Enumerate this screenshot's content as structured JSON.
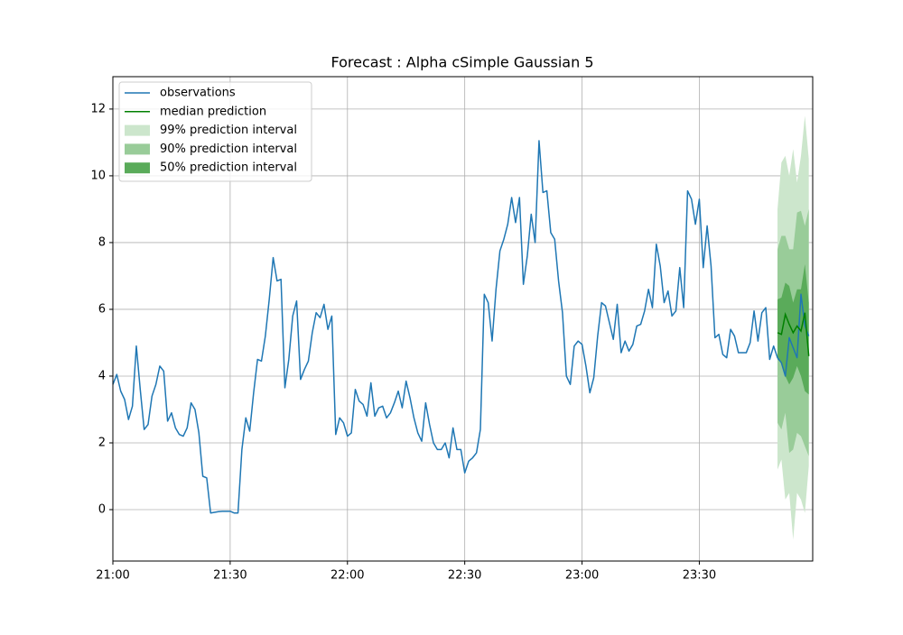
{
  "chart_data": {
    "type": "forecast",
    "title": "Forecast : Alpha cSimple Gaussian 5",
    "xlim": [
      "21:00",
      "23:59"
    ],
    "xticks": [
      "21:00",
      "21:30",
      "22:00",
      "22:30",
      "23:00",
      "23:30"
    ],
    "ylim": [
      -1.54,
      12.97
    ],
    "yticks": [
      0,
      2,
      4,
      6,
      8,
      10,
      12
    ],
    "grid": true,
    "legend": "upper left",
    "x": [
      "21:00",
      "21:01",
      "21:02",
      "21:03",
      "21:04",
      "21:05",
      "21:06",
      "21:07",
      "21:08",
      "21:09",
      "21:10",
      "21:11",
      "21:12",
      "21:13",
      "21:14",
      "21:15",
      "21:16",
      "21:17",
      "21:18",
      "21:19",
      "21:20",
      "21:21",
      "21:22",
      "21:23",
      "21:24",
      "21:25",
      "21:26",
      "21:27",
      "21:28",
      "21:29",
      "21:30",
      "21:31",
      "21:32",
      "21:33",
      "21:34",
      "21:35",
      "21:36",
      "21:37",
      "21:38",
      "21:39",
      "21:40",
      "21:41",
      "21:42",
      "21:43",
      "21:44",
      "21:45",
      "21:46",
      "21:47",
      "21:48",
      "21:49",
      "21:50",
      "21:51",
      "21:52",
      "21:53",
      "21:54",
      "21:55",
      "21:56",
      "21:57",
      "21:58",
      "21:59",
      "22:00",
      "22:01",
      "22:02",
      "22:03",
      "22:04",
      "22:05",
      "22:06",
      "22:07",
      "22:08",
      "22:09",
      "22:10",
      "22:11",
      "22:12",
      "22:13",
      "22:14",
      "22:15",
      "22:16",
      "22:17",
      "22:18",
      "22:19",
      "22:20",
      "22:21",
      "22:22",
      "22:23",
      "22:24",
      "22:25",
      "22:26",
      "22:27",
      "22:28",
      "22:29",
      "22:30",
      "22:31",
      "22:32",
      "22:33",
      "22:34",
      "22:35",
      "22:36",
      "22:37",
      "22:38",
      "22:39",
      "22:40",
      "22:41",
      "22:42",
      "22:43",
      "22:44",
      "22:45",
      "22:46",
      "22:47",
      "22:48",
      "22:49",
      "22:50",
      "22:51",
      "22:52",
      "22:53",
      "22:54",
      "22:55",
      "22:56",
      "22:57",
      "22:58",
      "22:59",
      "23:00",
      "23:01",
      "23:02",
      "23:03",
      "23:04",
      "23:05",
      "23:06",
      "23:07",
      "23:08",
      "23:09",
      "23:10",
      "23:11",
      "23:12",
      "23:13",
      "23:14",
      "23:15",
      "23:16",
      "23:17",
      "23:18",
      "23:19",
      "23:20",
      "23:21",
      "23:22",
      "23:23",
      "23:24",
      "23:25",
      "23:26",
      "23:27",
      "23:28",
      "23:29",
      "23:30",
      "23:31",
      "23:32",
      "23:33",
      "23:34",
      "23:35",
      "23:36",
      "23:37",
      "23:38",
      "23:39",
      "23:40",
      "23:41",
      "23:42",
      "23:43",
      "23:44",
      "23:45",
      "23:46",
      "23:47",
      "23:48",
      "23:49",
      "23:50",
      "23:51",
      "23:52",
      "23:53",
      "23:54",
      "23:55",
      "23:56",
      "23:57",
      "23:58"
    ],
    "series": [
      {
        "name": "observations",
        "color": "#1f77b4",
        "values": [
          3.75,
          4.05,
          3.55,
          3.3,
          2.7,
          3.1,
          4.9,
          3.6,
          2.4,
          2.55,
          3.4,
          3.75,
          4.3,
          4.15,
          2.65,
          2.9,
          2.45,
          2.25,
          2.2,
          2.45,
          3.2,
          3.0,
          2.3,
          1.0,
          0.95,
          -0.1,
          -0.08,
          -0.06,
          -0.05,
          -0.05,
          -0.05,
          -0.1,
          -0.1,
          1.8,
          2.75,
          2.35,
          3.5,
          4.5,
          4.45,
          5.2,
          6.3,
          7.55,
          6.85,
          6.9,
          3.65,
          4.5,
          5.8,
          6.25,
          3.9,
          4.2,
          4.45,
          5.3,
          5.9,
          5.75,
          6.15,
          5.4,
          5.8,
          2.25,
          2.75,
          2.6,
          2.2,
          2.3,
          3.6,
          3.25,
          3.15,
          2.8,
          3.8,
          2.8,
          3.05,
          3.1,
          2.75,
          2.9,
          3.2,
          3.55,
          3.05,
          3.85,
          3.35,
          2.75,
          2.3,
          2.05,
          3.2,
          2.55,
          2.0,
          1.8,
          1.8,
          2.0,
          1.55,
          2.45,
          1.8,
          1.8,
          1.1,
          1.45,
          1.55,
          1.7,
          2.4,
          6.45,
          6.2,
          5.05,
          6.6,
          7.75,
          8.1,
          8.55,
          9.35,
          8.6,
          9.35,
          6.75,
          7.6,
          8.85,
          8.0,
          11.05,
          9.5,
          9.55,
          8.3,
          8.1,
          6.85,
          5.9,
          4.0,
          3.75,
          4.9,
          5.05,
          4.95,
          4.3,
          3.5,
          3.95,
          5.2,
          6.2,
          6.1,
          5.6,
          5.1,
          6.15,
          4.7,
          5.05,
          4.75,
          4.95,
          5.5,
          5.55,
          5.95,
          6.6,
          6.05,
          7.95,
          7.3,
          6.2,
          6.55,
          5.8,
          5.95,
          7.25,
          6.05,
          9.55,
          9.3,
          8.55,
          9.3,
          7.25,
          8.5,
          7.3,
          5.15,
          5.25,
          4.65,
          4.55,
          5.4,
          5.2,
          4.7,
          4.7,
          4.7,
          5.0,
          5.95,
          5.05,
          5.9,
          6.05,
          4.5,
          4.9,
          4.55,
          4.4,
          4.0,
          5.15,
          4.85,
          4.55,
          6.45,
          5.5,
          5.2
        ]
      }
    ],
    "forecast": {
      "x": [
        "23:50",
        "23:51",
        "23:52",
        "23:53",
        "23:54",
        "23:55",
        "23:56",
        "23:57",
        "23:58"
      ],
      "median": {
        "name": "median prediction",
        "color": "#008000",
        "values": [
          5.3,
          5.25,
          5.85,
          5.55,
          5.3,
          5.5,
          5.35,
          5.9,
          4.6
        ]
      },
      "intervals": [
        {
          "name": "99% prediction interval",
          "color": "#cce6cc",
          "lower": [
            1.2,
            1.5,
            0.3,
            0.5,
            -0.9,
            0.5,
            0.3,
            -0.1,
            1.3
          ],
          "upper": [
            9.0,
            10.4,
            10.6,
            10.0,
            10.8,
            9.8,
            10.6,
            11.8,
            10.5
          ]
        },
        {
          "name": "90% prediction interval",
          "color": "#99cc99",
          "lower": [
            2.6,
            2.4,
            2.9,
            1.7,
            1.8,
            2.3,
            2.2,
            1.9,
            1.6
          ],
          "upper": [
            7.8,
            8.2,
            8.2,
            7.8,
            7.8,
            8.9,
            8.95,
            8.5,
            9.0
          ]
        },
        {
          "name": "50% prediction interval",
          "color": "#5aab5a",
          "lower": [
            4.5,
            4.4,
            4.0,
            3.75,
            3.95,
            4.3,
            4.0,
            3.55,
            3.45
          ],
          "upper": [
            6.3,
            6.35,
            6.8,
            6.7,
            6.2,
            6.6,
            6.6,
            7.35,
            6.2
          ]
        }
      ]
    }
  }
}
